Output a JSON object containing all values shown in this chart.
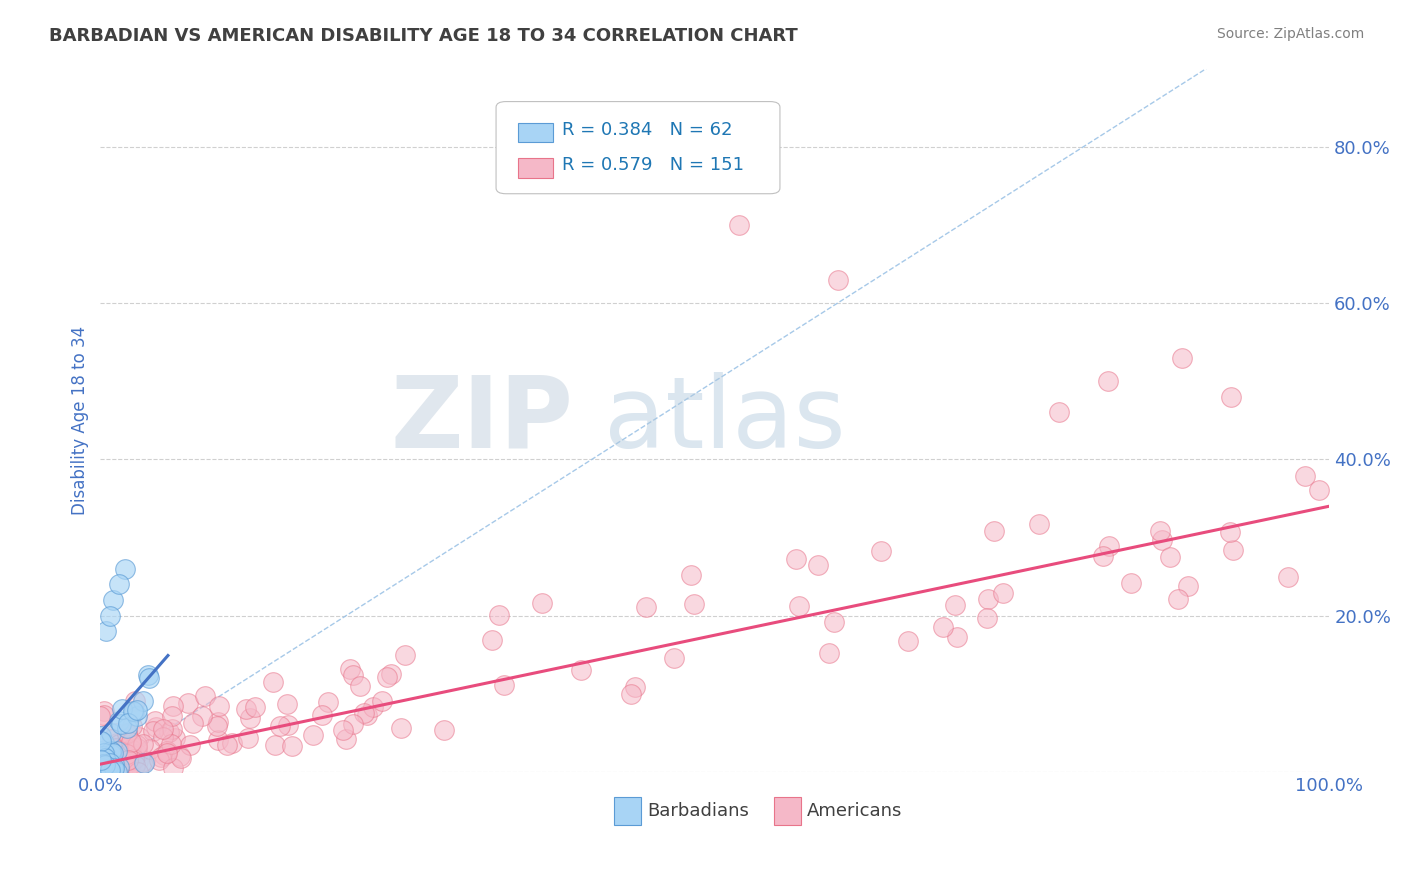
{
  "title": "BARBADIAN VS AMERICAN DISABILITY AGE 18 TO 34 CORRELATION CHART",
  "source": "Source: ZipAtlas.com",
  "ylabel": "Disability Age 18 to 34",
  "xlim": [
    0,
    1.0
  ],
  "ylim": [
    0,
    0.9
  ],
  "x_tick_labels_show": [
    "0.0%",
    "100.0%"
  ],
  "y_ticks": [
    0.0,
    0.2,
    0.4,
    0.6,
    0.8
  ],
  "y_tick_labels": [
    "",
    "20.0%",
    "40.0%",
    "60.0%",
    "80.0%"
  ],
  "barbadian_R": 0.384,
  "barbadian_N": 62,
  "american_R": 0.579,
  "american_N": 151,
  "barbadian_color": "#a8d4f5",
  "american_color": "#f5b8c8",
  "barbadian_edge_color": "#5b9bd5",
  "american_edge_color": "#e8748a",
  "barbadian_line_color": "#4472C4",
  "american_line_color": "#E84C7D",
  "diagonal_color": "#9DC3E6",
  "watermark_zip_color": "#d0d8e8",
  "watermark_atlas_color": "#b8cce4",
  "title_color": "#404040",
  "axis_label_color": "#4472C4",
  "tick_color": "#4472C4",
  "legend_text_color": "#1F77B4",
  "bottom_legend_text_color": "#404040",
  "american_line_intercept": 0.01,
  "american_line_slope": 0.33,
  "barbadian_line_intercept": 0.05,
  "barbadian_line_slope": 1.8
}
